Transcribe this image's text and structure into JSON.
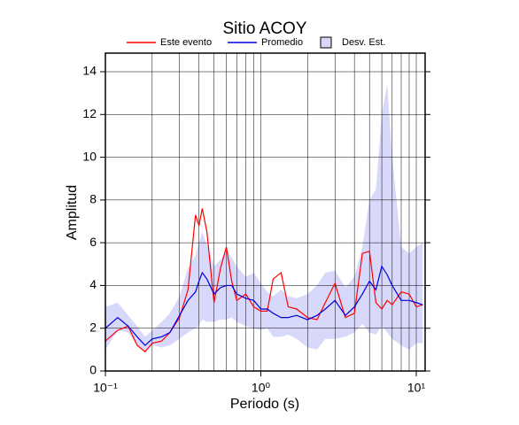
{
  "chart_data": {
    "type": "line",
    "title": "Sitio ACOY",
    "x_label": "Periodo (s)",
    "y_label": "Amplitud",
    "x_log": true,
    "xlim": [
      0.1,
      11.4
    ],
    "ylim": [
      0,
      14.87
    ],
    "xticks": [
      {
        "value": 0.1,
        "label": "10⁻¹"
      },
      {
        "value": 1,
        "label": "10⁰"
      },
      {
        "value": 10,
        "label": "10¹"
      }
    ],
    "x_gridlines": [
      0.2,
      0.3,
      0.4,
      0.5,
      0.6,
      0.7,
      0.8,
      0.9,
      2,
      3,
      4,
      5,
      6,
      7,
      8,
      9
    ],
    "yticks": [
      0,
      2,
      4,
      6,
      8,
      10,
      12,
      14
    ],
    "grid": true,
    "legend": "top",
    "x": [
      0.1,
      0.12,
      0.14,
      0.16,
      0.18,
      0.2,
      0.23,
      0.26,
      0.3,
      0.34,
      0.38,
      0.4,
      0.42,
      0.45,
      0.5,
      0.55,
      0.6,
      0.65,
      0.7,
      0.8,
      0.9,
      1.0,
      1.1,
      1.2,
      1.35,
      1.5,
      1.7,
      2.0,
      2.3,
      2.6,
      3.0,
      3.5,
      4.0,
      4.5,
      5.0,
      5.5,
      6.0,
      6.5,
      7.0,
      8.0,
      9.0,
      10.0,
      11.0
    ],
    "series": [
      {
        "name": "Este evento",
        "color": "#ff0000",
        "values": [
          1.4,
          1.9,
          2.1,
          1.2,
          0.9,
          1.3,
          1.4,
          1.8,
          2.5,
          3.8,
          7.3,
          6.8,
          7.6,
          6.5,
          3.2,
          4.8,
          5.8,
          4.2,
          3.3,
          3.6,
          3.0,
          2.8,
          2.8,
          4.3,
          4.6,
          3.0,
          2.9,
          2.5,
          2.4,
          3.2,
          4.1,
          2.5,
          2.7,
          5.5,
          5.6,
          3.2,
          2.9,
          3.3,
          3.1,
          3.7,
          3.6,
          3.0,
          3.1
        ]
      },
      {
        "name": "Promedio",
        "color": "#0000dd",
        "values": [
          2.0,
          2.5,
          2.1,
          1.6,
          1.2,
          1.5,
          1.6,
          1.8,
          2.6,
          3.3,
          3.7,
          4.2,
          4.6,
          4.3,
          3.6,
          3.9,
          4.0,
          4.0,
          3.6,
          3.4,
          3.3,
          2.9,
          2.9,
          2.7,
          2.5,
          2.5,
          2.6,
          2.4,
          2.6,
          2.9,
          3.3,
          2.6,
          3.0,
          3.6,
          4.2,
          3.8,
          4.9,
          4.5,
          4.0,
          3.3,
          3.3,
          3.2,
          3.1
        ]
      }
    ],
    "band": {
      "name": "Desv. Est.",
      "color": "#d8d8fa",
      "lower": [
        1.0,
        1.9,
        1.8,
        1.2,
        0.9,
        1.2,
        1.1,
        1.2,
        1.5,
        1.8,
        2.0,
        2.1,
        2.4,
        2.3,
        2.3,
        2.4,
        2.4,
        2.5,
        2.3,
        2.1,
        2.0,
        1.9,
        2.0,
        1.6,
        1.6,
        1.7,
        1.5,
        1.1,
        1.0,
        1.5,
        1.5,
        1.6,
        1.8,
        2.2,
        1.8,
        1.7,
        2.1,
        1.8,
        1.5,
        1.2,
        1.0,
        1.3,
        1.3
      ],
      "upper": [
        3.0,
        3.2,
        2.6,
        2.1,
        1.6,
        1.9,
        2.3,
        2.7,
        3.5,
        4.8,
        5.4,
        6.0,
        6.5,
        5.9,
        4.9,
        5.2,
        5.7,
        5.3,
        4.9,
        4.4,
        4.6,
        4.1,
        3.7,
        3.5,
        3.8,
        3.5,
        3.4,
        3.6,
        4.0,
        4.6,
        4.7,
        3.9,
        4.4,
        5.8,
        8.0,
        8.5,
        12.0,
        13.4,
        10.0,
        5.8,
        5.5,
        5.8,
        6.0
      ]
    }
  }
}
